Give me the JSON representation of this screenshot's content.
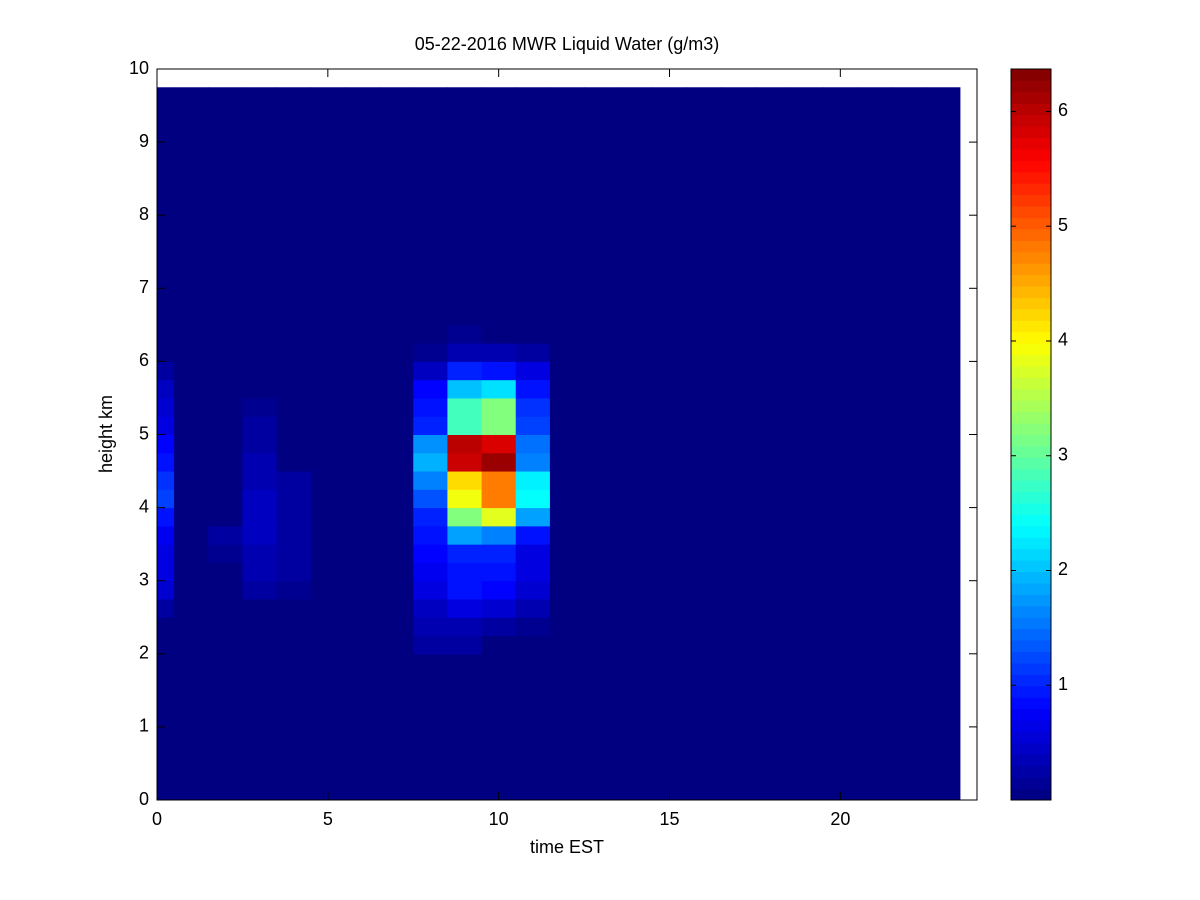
{
  "chart_data": {
    "type": "heatmap",
    "title": "05-22-2016 MWR Liquid Water (g/m3)",
    "xlabel": "time EST",
    "ylabel": "height km",
    "xlim": [
      0,
      24
    ],
    "xticks": [
      0,
      5,
      10,
      15,
      20
    ],
    "ylim": [
      0,
      10
    ],
    "yticks": [
      0,
      1,
      2,
      3,
      4,
      5,
      6,
      7,
      8,
      9,
      10
    ],
    "clim": [
      0,
      6.37
    ],
    "cticks": [
      1,
      2,
      3,
      4,
      5,
      6
    ],
    "colormap": "jet",
    "x": [
      0,
      1,
      2,
      3,
      4,
      5,
      6,
      7,
      8,
      9,
      10,
      11,
      12,
      13,
      14,
      15,
      16,
      17,
      18,
      19,
      20,
      21,
      22,
      23
    ],
    "y_edges": [
      0,
      2,
      2.25,
      2.5,
      2.75,
      3,
      3.25,
      3.5,
      3.75,
      4,
      4.25,
      4.5,
      4.75,
      5,
      5.25,
      5.5,
      5.75,
      6,
      6.25,
      6.5,
      9.75
    ],
    "z": [
      [
        0,
        0,
        0,
        0,
        0,
        0,
        0,
        0,
        0,
        0,
        0,
        0,
        0,
        0,
        0,
        0,
        0,
        0,
        0,
        0,
        0,
        0,
        0,
        0
      ],
      [
        0,
        0,
        0,
        0,
        0,
        0,
        0,
        0,
        0.2,
        0.2,
        0,
        0,
        0,
        0,
        0,
        0,
        0,
        0,
        0,
        0,
        0,
        0,
        0,
        0
      ],
      [
        0,
        0,
        0,
        0,
        0,
        0,
        0,
        0,
        0.3,
        0.3,
        0.2,
        0.1,
        0,
        0,
        0,
        0,
        0,
        0,
        0,
        0,
        0,
        0,
        0,
        0
      ],
      [
        0.2,
        0,
        0,
        0,
        0,
        0,
        0,
        0,
        0.4,
        0.6,
        0.5,
        0.3,
        0,
        0,
        0,
        0,
        0,
        0,
        0,
        0,
        0,
        0,
        0,
        0
      ],
      [
        0.5,
        0,
        0,
        0.2,
        0.1,
        0,
        0,
        0,
        0.6,
        0.9,
        0.8,
        0.5,
        0,
        0,
        0,
        0,
        0,
        0,
        0,
        0,
        0,
        0,
        0,
        0
      ],
      [
        0.6,
        0,
        0,
        0.3,
        0.2,
        0,
        0,
        0,
        0.7,
        0.9,
        0.9,
        0.6,
        0,
        0,
        0,
        0,
        0,
        0,
        0,
        0,
        0,
        0,
        0,
        0
      ],
      [
        0.6,
        0,
        0.1,
        0.3,
        0.2,
        0,
        0,
        0,
        0.8,
        1.0,
        1.0,
        0.6,
        0,
        0,
        0,
        0,
        0,
        0,
        0,
        0,
        0,
        0,
        0,
        0
      ],
      [
        0.7,
        0,
        0.2,
        0.4,
        0.2,
        0,
        0,
        0,
        0.9,
        1.8,
        1.6,
        0.9,
        0,
        0,
        0,
        0,
        0,
        0,
        0,
        0,
        0,
        0,
        0,
        0
      ],
      [
        0.9,
        0,
        0,
        0.4,
        0.2,
        0,
        0,
        0,
        1.0,
        3.2,
        3.8,
        1.8,
        0,
        0,
        0,
        0,
        0,
        0,
        0,
        0,
        0,
        0,
        0,
        0
      ],
      [
        1.2,
        0,
        0,
        0.4,
        0.2,
        0,
        0,
        0,
        1.3,
        3.9,
        4.8,
        2.4,
        0,
        0,
        0,
        0,
        0,
        0,
        0,
        0,
        0,
        0,
        0,
        0
      ],
      [
        1.1,
        0,
        0,
        0.3,
        0.2,
        0,
        0,
        0,
        1.6,
        4.2,
        4.8,
        2.3,
        0,
        0,
        0,
        0,
        0,
        0,
        0,
        0,
        0,
        0,
        0,
        0
      ],
      [
        0.9,
        0,
        0,
        0.3,
        0,
        0,
        0,
        0,
        1.9,
        5.9,
        6.2,
        1.6,
        0,
        0,
        0,
        0,
        0,
        0,
        0,
        0,
        0,
        0,
        0,
        0
      ],
      [
        0.8,
        0,
        0,
        0.2,
        0,
        0,
        0,
        0,
        1.7,
        6.0,
        5.8,
        1.5,
        0,
        0,
        0,
        0,
        0,
        0,
        0,
        0,
        0,
        0,
        0,
        0
      ],
      [
        0.6,
        0,
        0,
        0.2,
        0,
        0,
        0,
        0,
        1.0,
        2.8,
        3.2,
        1.2,
        0,
        0,
        0,
        0,
        0,
        0,
        0,
        0,
        0,
        0,
        0,
        0
      ],
      [
        0.5,
        0,
        0,
        0.1,
        0,
        0,
        0,
        0,
        0.9,
        2.8,
        3.2,
        1.1,
        0,
        0,
        0,
        0,
        0,
        0,
        0,
        0,
        0,
        0,
        0,
        0
      ],
      [
        0.4,
        0,
        0,
        0,
        0,
        0,
        0,
        0,
        0.8,
        2.0,
        2.2,
        0.9,
        0,
        0,
        0,
        0,
        0,
        0,
        0,
        0,
        0,
        0,
        0,
        0
      ],
      [
        0.2,
        0,
        0,
        0,
        0,
        0,
        0,
        0,
        0.4,
        1.0,
        0.9,
        0.6,
        0,
        0,
        0,
        0,
        0,
        0,
        0,
        0,
        0,
        0,
        0,
        0
      ],
      [
        0,
        0,
        0,
        0,
        0,
        0,
        0,
        0,
        0.1,
        0.3,
        0.3,
        0.2,
        0,
        0,
        0,
        0,
        0,
        0,
        0,
        0,
        0,
        0,
        0,
        0
      ],
      [
        0,
        0,
        0,
        0,
        0,
        0,
        0,
        0,
        0,
        0.1,
        0,
        0,
        0,
        0,
        0,
        0,
        0,
        0,
        0,
        0,
        0,
        0,
        0,
        0
      ],
      [
        0,
        0,
        0,
        0,
        0,
        0,
        0,
        0,
        0,
        0,
        0,
        0,
        0,
        0,
        0,
        0,
        0,
        0,
        0,
        0,
        0,
        0,
        0,
        0
      ]
    ]
  }
}
